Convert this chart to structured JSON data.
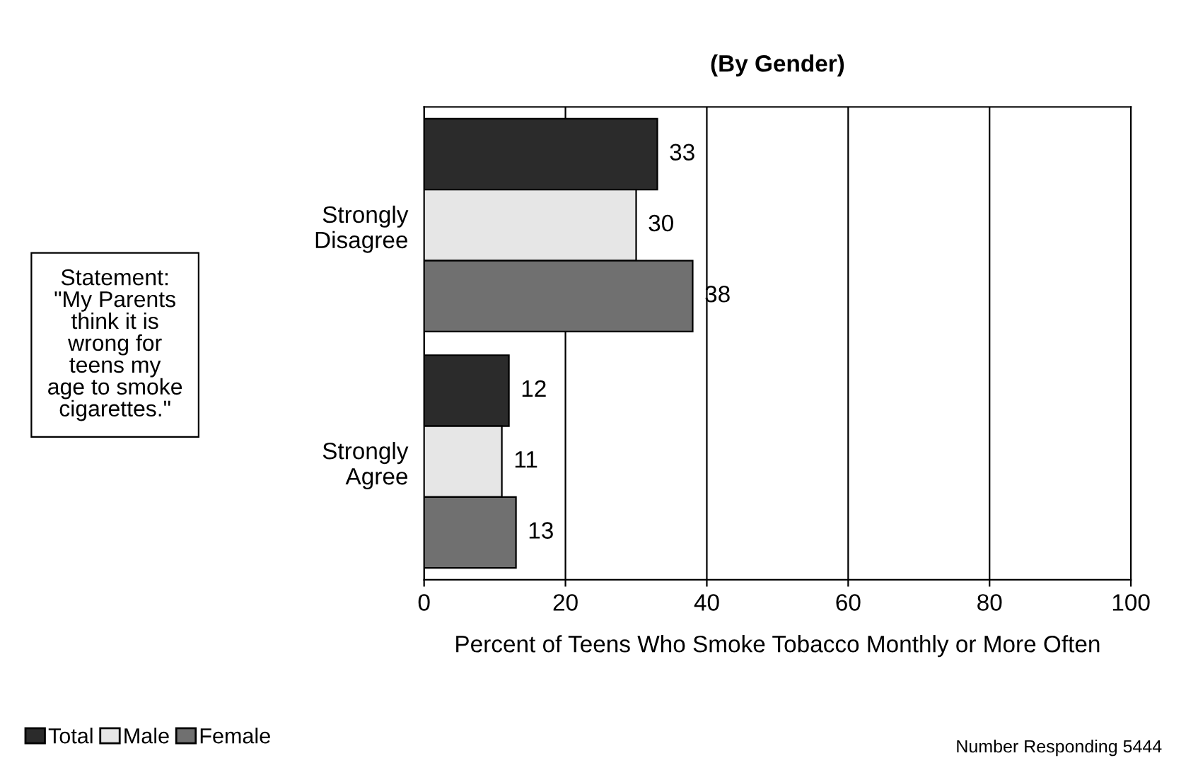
{
  "chart_data": {
    "type": "bar",
    "orientation": "horizontal",
    "title": "(By Gender)",
    "xlabel": "Percent of Teens Who Smoke Tobacco Monthly or More Often",
    "categories": [
      "Strongly\nDisagree",
      "Strongly\nAgree"
    ],
    "series": [
      {
        "name": "Total",
        "color": "#2b2b2b",
        "values": [
          33,
          12
        ]
      },
      {
        "name": "Male",
        "color": "#e6e6e6",
        "values": [
          30,
          11
        ]
      },
      {
        "name": "Female",
        "color": "#707070",
        "values": [
          38,
          13
        ]
      }
    ],
    "xlim": [
      0,
      100
    ],
    "xticks": [
      0,
      20,
      40,
      60,
      80,
      100
    ],
    "grid": "x",
    "legend": "bottom left",
    "data_labels": true,
    "annotations": [
      "Statement:\n\"My Parents\nthink it is\nwrong for\nteens my\nage to smoke\ncigarettes.\"",
      "Number Responding 5444"
    ]
  }
}
